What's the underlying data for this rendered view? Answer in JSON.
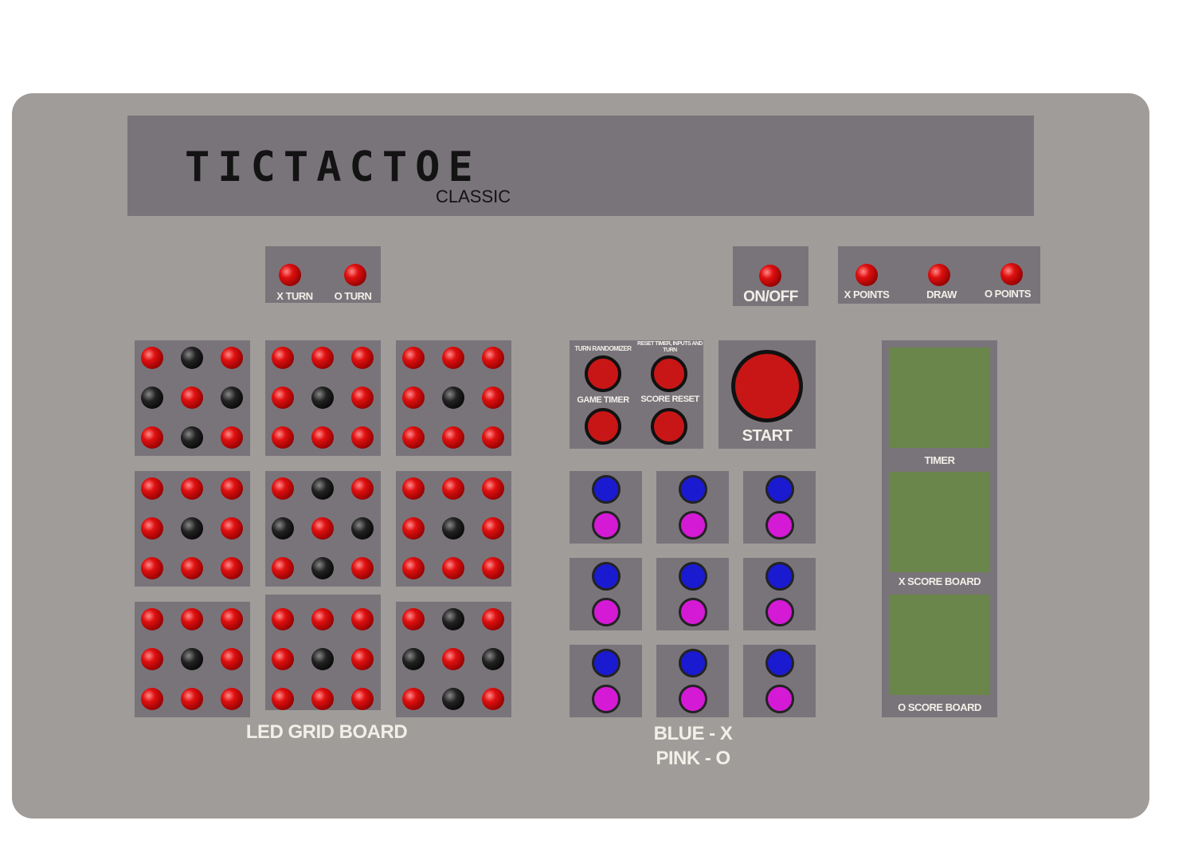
{
  "title": "TICTACTOE",
  "subtitle": "CLASSIC",
  "turn": {
    "x": "X TURN",
    "o": "O TURN"
  },
  "power": "ON/OFF",
  "points": {
    "x": "X POINTS",
    "draw": "DRAW",
    "o": "O POINTS"
  },
  "controls": {
    "randomizer": "TURN RANDOMIZER",
    "reset_all": "RESET TIMER, INPUTS AND TURN",
    "timer": "GAME TIMER",
    "score_reset": "SCORE RESET",
    "start": "START"
  },
  "grid_label": "LED GRID BOARD",
  "legend": {
    "blue": "BLUE - X",
    "pink": "PINK - O"
  },
  "boards": {
    "timer": "TIMER",
    "x": "X SCORE BOARD",
    "o": "O SCORE BOARD"
  },
  "colors": {
    "led_on": "#e01010",
    "led_off": "#000000",
    "blue": "#1a1ad0",
    "pink": "#d41ad4",
    "button": "#c81616",
    "display": "#6a864a"
  },
  "led_grid": [
    [
      "RBR",
      "BRB",
      "RBR"
    ],
    [
      "RRR",
      "RBR",
      "RRR"
    ],
    [
      "RRR",
      "RBR",
      "RRR"
    ],
    [
      "RRR",
      "RBR",
      "RRR"
    ],
    [
      "RBR",
      "BRB",
      "RBR"
    ],
    [
      "RRR",
      "RBR",
      "RRR"
    ],
    [
      "RRR",
      "RBR",
      "RRR"
    ],
    [
      "RRR",
      "RBR",
      "RRR"
    ],
    [
      "RBR",
      "BRB",
      "RBR"
    ]
  ]
}
